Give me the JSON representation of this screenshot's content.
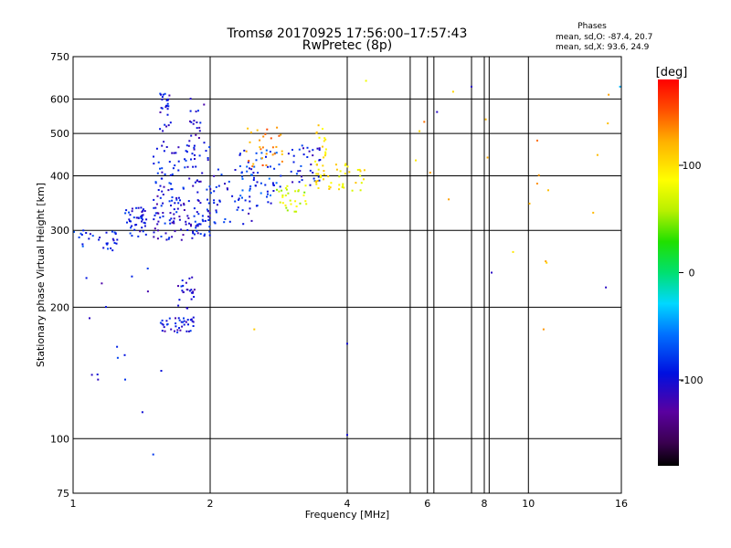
{
  "title": "Tromsø 20170925 17:56:00–17:57:43",
  "subtitle": "RwPretec (8p)",
  "stats": {
    "heading": "Phases",
    "line_o": "mean, sd,O: -87.4, 20.7",
    "line_x": "mean, sd,X:  93.6, 24.9"
  },
  "colorbar": {
    "unit_label": "[deg]",
    "min": -180,
    "max": 180,
    "ticks": [
      100,
      0,
      -100
    ]
  },
  "chart_data": {
    "type": "scatter",
    "title": "Tromsø 20170925 17:56:00–17:57:43",
    "subtitle": "RwPretec (8p)",
    "xlabel": "Frequency [MHz]",
    "ylabel": "Stationary phase Virtual Height [km]",
    "xscale": "log",
    "yscale": "log",
    "xlim": [
      1,
      16
    ],
    "ylim": [
      75,
      750
    ],
    "xticks": [
      1,
      2,
      4,
      6,
      8,
      10,
      16
    ],
    "yticks": [
      75,
      100,
      200,
      300,
      400,
      500,
      600,
      750
    ],
    "extra_xgrid": [
      5.5,
      6.2,
      7.5,
      8.2,
      10,
      16
    ],
    "grid": true,
    "point_color_unit": "deg",
    "clusters": [
      {
        "f": [
          1.0,
          1.25
        ],
        "h": [
          270,
          300
        ],
        "phase": -90,
        "n": 30
      },
      {
        "f": [
          1.3,
          1.45
        ],
        "h": [
          290,
          340
        ],
        "phase": -95,
        "n": 45
      },
      {
        "f": [
          1.5,
          2.0
        ],
        "h": [
          285,
          360
        ],
        "phase": -100,
        "n": 110
      },
      {
        "f": [
          1.5,
          2.0
        ],
        "h": [
          360,
          470
        ],
        "phase": -95,
        "n": 70
      },
      {
        "f": [
          1.55,
          1.65
        ],
        "h": [
          460,
          620
        ],
        "phase": -100,
        "n": 28
      },
      {
        "f": [
          1.8,
          1.95
        ],
        "h": [
          450,
          610
        ],
        "phase": -100,
        "n": 20
      },
      {
        "f": [
          1.55,
          1.85
        ],
        "h": [
          175,
          190
        ],
        "phase": -100,
        "n": 40
      },
      {
        "f": [
          1.7,
          1.85
        ],
        "h": [
          195,
          235
        ],
        "phase": -100,
        "n": 25
      },
      {
        "f": [
          2.0,
          2.5
        ],
        "h": [
          310,
          420
        ],
        "phase": -95,
        "n": 45
      },
      {
        "f": [
          2.3,
          2.9
        ],
        "h": [
          340,
          460
        ],
        "phase": -80,
        "n": 55
      },
      {
        "f": [
          2.4,
          2.9
        ],
        "h": [
          420,
          520
        ],
        "phase": 130,
        "n": 30
      },
      {
        "f": [
          2.8,
          3.3
        ],
        "h": [
          330,
          380
        ],
        "phase": 70,
        "n": 30
      },
      {
        "f": [
          2.9,
          3.5
        ],
        "h": [
          380,
          470
        ],
        "phase": -95,
        "n": 35
      },
      {
        "f": [
          3.4,
          4.4
        ],
        "h": [
          370,
          430
        ],
        "phase": 95,
        "n": 45
      },
      {
        "f": [
          3.4,
          3.6
        ],
        "h": [
          420,
          530
        ],
        "phase": 100,
        "n": 18
      },
      {
        "f": [
          1.05,
          1.6
        ],
        "h": [
          130,
          250
        ],
        "phase": -100,
        "n": 14
      },
      {
        "f": [
          5.5,
          15.5
        ],
        "h": [
          240,
          640
        ],
        "phase": 120,
        "n": 20
      }
    ],
    "points": [
      {
        "x": 4.0,
        "y": 165,
        "phase": -100
      },
      {
        "x": 4.0,
        "y": 102,
        "phase": -100
      },
      {
        "x": 1.5,
        "y": 92,
        "phase": -80
      },
      {
        "x": 1.42,
        "y": 115,
        "phase": -100
      },
      {
        "x": 7.5,
        "y": 640,
        "phase": -110
      },
      {
        "x": 15.9,
        "y": 640,
        "phase": -40
      },
      {
        "x": 6.3,
        "y": 560,
        "phase": -110
      },
      {
        "x": 8.3,
        "y": 240,
        "phase": -110
      },
      {
        "x": 14.8,
        "y": 222,
        "phase": -110
      },
      {
        "x": 10.8,
        "y": 178,
        "phase": 130
      },
      {
        "x": 4.4,
        "y": 660,
        "phase": 80
      },
      {
        "x": 2.5,
        "y": 178,
        "phase": 110
      },
      {
        "x": 1.1,
        "y": 140,
        "phase": -110
      }
    ]
  }
}
